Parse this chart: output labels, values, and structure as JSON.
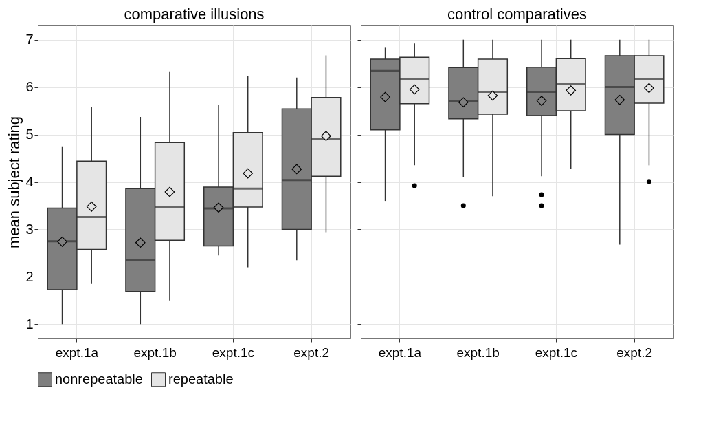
{
  "chart_data": [
    {
      "type": "box",
      "title": "comparative illusions",
      "ylabel": "mean subject rating",
      "categories": [
        "expt.1a",
        "expt.1b",
        "expt.1c",
        "expt.2"
      ],
      "ylim": [
        0.7,
        7.3
      ],
      "yticks": [
        1,
        2,
        3,
        4,
        5,
        6,
        7
      ],
      "grid": true,
      "legend": "bottom",
      "marker": "diamond",
      "series": [
        {
          "name": "nonrepeatable",
          "color": "#7f7f7f",
          "boxes": [
            {
              "low": 1.0,
              "q1": 1.73,
              "median": 2.75,
              "q3": 3.45,
              "high": 4.75,
              "mean": 2.74
            },
            {
              "low": 1.0,
              "q1": 1.69,
              "median": 2.36,
              "q3": 3.86,
              "high": 5.37,
              "mean": 2.72
            },
            {
              "low": 2.45,
              "q1": 2.65,
              "median": 3.44,
              "q3": 3.89,
              "high": 5.62,
              "mean": 3.46
            },
            {
              "low": 2.35,
              "q1": 3.0,
              "median": 4.04,
              "q3": 5.54,
              "high": 6.2,
              "mean": 4.27
            }
          ]
        },
        {
          "name": "repeatable",
          "color": "#e5e5e5",
          "boxes": [
            {
              "low": 1.85,
              "q1": 2.58,
              "median": 3.26,
              "q3": 4.44,
              "high": 5.58,
              "mean": 3.48
            },
            {
              "low": 1.5,
              "q1": 2.77,
              "median": 3.47,
              "q3": 4.83,
              "high": 6.33,
              "mean": 3.79
            },
            {
              "low": 2.2,
              "q1": 3.47,
              "median": 3.86,
              "q3": 5.04,
              "high": 6.24,
              "mean": 4.18
            },
            {
              "low": 2.94,
              "q1": 4.12,
              "median": 4.91,
              "q3": 5.78,
              "high": 6.67,
              "mean": 4.97
            }
          ]
        }
      ]
    },
    {
      "type": "box",
      "title": "control comparatives",
      "categories": [
        "expt.1a",
        "expt.1b",
        "expt.1c",
        "expt.2"
      ],
      "ylim": [
        0.7,
        7.3
      ],
      "yticks": [
        1,
        2,
        3,
        4,
        5,
        6,
        7
      ],
      "grid": true,
      "legend": "bottom",
      "marker": "diamond",
      "tick_labels": "x",
      "series": [
        {
          "name": "nonrepeatable",
          "color": "#7f7f7f",
          "boxes": [
            {
              "low": 3.6,
              "q1": 5.1,
              "median": 6.34,
              "q3": 6.59,
              "high": 6.83,
              "mean": 5.79
            },
            {
              "low": 4.1,
              "q1": 5.33,
              "median": 5.71,
              "q3": 6.41,
              "high": 7.0,
              "mean": 5.68,
              "outliers": [
                3.5
              ]
            },
            {
              "low": 4.12,
              "q1": 5.4,
              "median": 5.9,
              "q3": 6.42,
              "high": 7.0,
              "mean": 5.71,
              "outliers": [
                3.73,
                3.5
              ]
            },
            {
              "low": 2.68,
              "q1": 5.0,
              "median": 6.0,
              "q3": 6.66,
              "high": 7.0,
              "mean": 5.73
            }
          ]
        },
        {
          "name": "repeatable",
          "color": "#e5e5e5",
          "boxes": [
            {
              "low": 4.35,
              "q1": 5.65,
              "median": 6.17,
              "q3": 6.63,
              "high": 6.92,
              "mean": 5.95,
              "outliers": [
                3.92
              ]
            },
            {
              "low": 3.7,
              "q1": 5.43,
              "median": 5.9,
              "q3": 6.59,
              "high": 7.0,
              "mean": 5.82
            },
            {
              "low": 4.28,
              "q1": 5.5,
              "median": 6.07,
              "q3": 6.6,
              "high": 7.0,
              "mean": 5.93
            },
            {
              "low": 4.35,
              "q1": 5.66,
              "median": 6.17,
              "q3": 6.66,
              "high": 7.0,
              "mean": 5.98,
              "outliers": [
                4.01
              ]
            }
          ]
        }
      ]
    }
  ]
}
